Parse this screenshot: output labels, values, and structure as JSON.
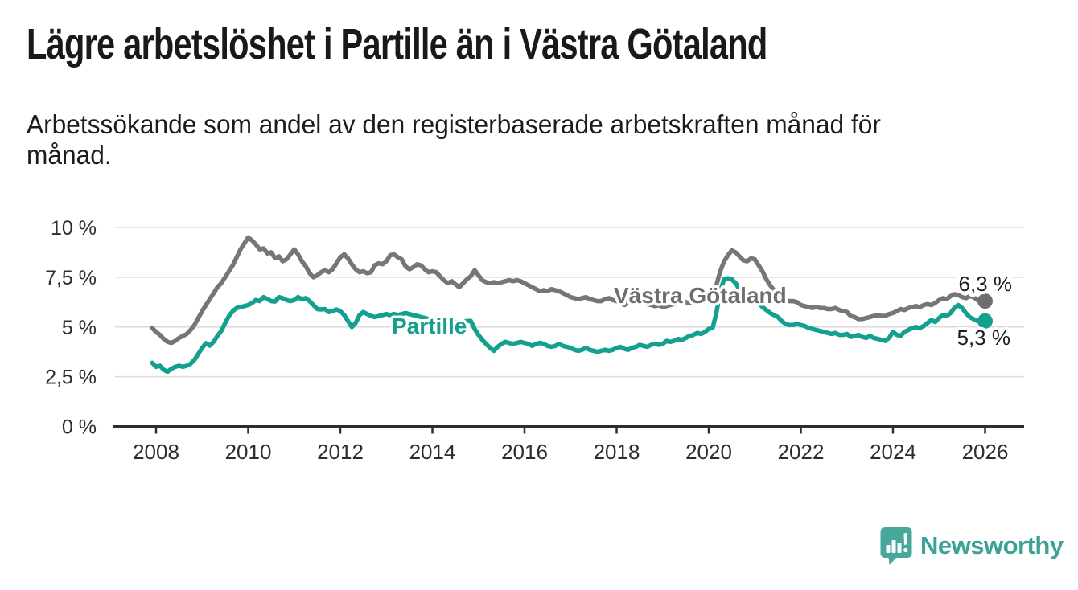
{
  "header": {
    "title": "Lägre arbetslöshet i Partille än i Västra Götaland",
    "subtitle_line1": "Arbetssökande som andel av den registerbaserade arbetskraften månad för",
    "subtitle_line2": "månad."
  },
  "footer": {
    "brand": "Newsworthy",
    "logo_icon": "bar-chart-speech-bubble-icon"
  },
  "colors": {
    "partille_line": "#13a08e",
    "vastra_gotaland_line": "#75757a",
    "partille_label": "#13a08e",
    "vastra_gotaland_label": "#6d6d72",
    "axis": "#2d2d2d",
    "grid": "#dadada",
    "end_label_text": "#1d1d1d",
    "brand_teal": "#48a79b"
  },
  "chart_data": {
    "type": "line",
    "frequency": "monthly",
    "x_start": "2007-12",
    "x_end": "2026-01",
    "grid": "horizontal",
    "legend": "inline-labels",
    "ylim": [
      0,
      10.5
    ],
    "y_ticks": [
      0,
      2.5,
      5,
      7.5,
      10
    ],
    "y_tick_labels": [
      "0 %",
      "2,5 %",
      "5 %",
      "7,5 %",
      "10 %"
    ],
    "x_tick_years": [
      2008,
      2010,
      2012,
      2014,
      2016,
      2018,
      2020,
      2022,
      2024,
      2026
    ],
    "x_tick_labels": [
      "2008",
      "2010",
      "2012",
      "2014",
      "2016",
      "2018",
      "2020",
      "2022",
      "2024",
      "2026"
    ],
    "series": [
      {
        "name": "Västra Götaland",
        "color": "#75757a",
        "end_label": "6,3 %",
        "end_value": 6.3,
        "values": [
          4.95,
          4.75,
          4.6,
          4.4,
          4.25,
          4.2,
          4.3,
          4.45,
          4.55,
          4.65,
          4.85,
          5.1,
          5.45,
          5.8,
          6.1,
          6.4,
          6.7,
          7.0,
          7.2,
          7.5,
          7.8,
          8.1,
          8.5,
          8.9,
          9.2,
          9.5,
          9.35,
          9.15,
          8.9,
          8.95,
          8.7,
          8.75,
          8.45,
          8.55,
          8.3,
          8.4,
          8.65,
          8.9,
          8.65,
          8.3,
          8.05,
          7.7,
          7.5,
          7.6,
          7.75,
          7.85,
          7.75,
          7.9,
          8.2,
          8.5,
          8.65,
          8.45,
          8.15,
          7.9,
          7.75,
          7.8,
          7.7,
          7.75,
          8.1,
          8.2,
          8.15,
          8.3,
          8.6,
          8.65,
          8.5,
          8.4,
          8.05,
          7.9,
          8.0,
          8.15,
          8.1,
          7.9,
          7.75,
          7.8,
          7.75,
          7.55,
          7.35,
          7.2,
          7.3,
          7.15,
          7.0,
          7.2,
          7.4,
          7.55,
          7.85,
          7.6,
          7.35,
          7.25,
          7.2,
          7.25,
          7.2,
          7.25,
          7.3,
          7.35,
          7.3,
          7.35,
          7.3,
          7.2,
          7.1,
          7.0,
          6.9,
          6.8,
          6.85,
          6.8,
          6.9,
          6.85,
          6.8,
          6.7,
          6.6,
          6.5,
          6.45,
          6.4,
          6.45,
          6.5,
          6.4,
          6.35,
          6.3,
          6.3,
          6.4,
          6.45,
          6.35,
          6.3,
          6.2,
          6.1,
          6.2,
          6.25,
          6.3,
          6.35,
          6.25,
          6.15,
          6.1,
          6.05,
          6.1,
          6.0,
          6.05,
          6.1,
          6.15,
          6.2,
          6.3,
          6.25,
          6.2,
          6.3,
          6.35,
          6.4,
          6.45,
          6.5,
          6.6,
          7.1,
          7.8,
          8.3,
          8.6,
          8.85,
          8.75,
          8.55,
          8.35,
          8.3,
          8.45,
          8.4,
          8.1,
          7.8,
          7.4,
          7.1,
          6.85,
          6.6,
          6.45,
          6.35,
          6.3,
          6.3,
          6.25,
          6.1,
          6.05,
          6.0,
          5.95,
          6.0,
          5.95,
          5.95,
          5.9,
          5.9,
          5.95,
          5.85,
          5.8,
          5.75,
          5.55,
          5.5,
          5.4,
          5.4,
          5.45,
          5.5,
          5.55,
          5.6,
          5.55,
          5.55,
          5.65,
          5.7,
          5.8,
          5.9,
          5.85,
          5.95,
          6.0,
          6.05,
          6.0,
          6.1,
          6.15,
          6.1,
          6.2,
          6.35,
          6.45,
          6.4,
          6.55,
          6.65,
          6.6,
          6.5,
          6.45,
          6.55,
          6.5,
          6.35,
          6.3,
          6.3
        ]
      },
      {
        "name": "Partille",
        "color": "#13a08e",
        "end_label": "5,3 %",
        "end_value": 5.3,
        "values": [
          3.2,
          3.0,
          3.05,
          2.85,
          2.75,
          2.9,
          3.0,
          3.05,
          3.0,
          3.05,
          3.15,
          3.35,
          3.65,
          3.95,
          4.18,
          4.06,
          4.26,
          4.55,
          4.8,
          5.2,
          5.55,
          5.8,
          5.95,
          6.0,
          6.05,
          6.1,
          6.2,
          6.35,
          6.3,
          6.5,
          6.4,
          6.3,
          6.28,
          6.5,
          6.45,
          6.35,
          6.3,
          6.35,
          6.5,
          6.4,
          6.45,
          6.3,
          6.1,
          5.9,
          5.88,
          5.9,
          5.75,
          5.8,
          5.88,
          5.8,
          5.6,
          5.3,
          5.0,
          5.2,
          5.6,
          5.75,
          5.65,
          5.55,
          5.5,
          5.55,
          5.6,
          5.65,
          5.6,
          5.65,
          5.6,
          5.65,
          5.7,
          5.65,
          5.6,
          5.55,
          5.5,
          5.45,
          5.4,
          5.4,
          5.35,
          5.3,
          5.3,
          5.25,
          5.2,
          5.25,
          5.2,
          5.25,
          5.3,
          5.3,
          4.9,
          4.6,
          4.35,
          4.15,
          3.95,
          3.8,
          4.0,
          4.15,
          4.25,
          4.2,
          4.15,
          4.2,
          4.25,
          4.2,
          4.15,
          4.05,
          4.15,
          4.2,
          4.15,
          4.05,
          4.0,
          4.05,
          4.15,
          4.05,
          4.0,
          3.95,
          3.85,
          3.8,
          3.85,
          3.95,
          3.85,
          3.8,
          3.75,
          3.8,
          3.85,
          3.8,
          3.85,
          3.95,
          4.0,
          3.9,
          3.85,
          3.95,
          4.0,
          4.1,
          4.05,
          4.0,
          4.1,
          4.15,
          4.1,
          4.15,
          4.3,
          4.25,
          4.3,
          4.4,
          4.35,
          4.45,
          4.55,
          4.6,
          4.7,
          4.65,
          4.75,
          4.9,
          4.95,
          5.7,
          6.8,
          7.4,
          7.45,
          7.4,
          7.2,
          6.9,
          6.7,
          6.5,
          6.4,
          6.3,
          6.2,
          6.0,
          5.85,
          5.7,
          5.6,
          5.5,
          5.3,
          5.15,
          5.1,
          5.1,
          5.15,
          5.1,
          5.05,
          4.95,
          4.9,
          4.85,
          4.8,
          4.75,
          4.7,
          4.65,
          4.7,
          4.6,
          4.6,
          4.65,
          4.5,
          4.55,
          4.6,
          4.5,
          4.45,
          4.55,
          4.45,
          4.4,
          4.35,
          4.3,
          4.45,
          4.75,
          4.6,
          4.55,
          4.75,
          4.85,
          4.95,
          5.0,
          4.95,
          5.05,
          5.2,
          5.35,
          5.25,
          5.45,
          5.6,
          5.55,
          5.7,
          5.95,
          6.1,
          5.95,
          5.7,
          5.5,
          5.4,
          5.3,
          5.25,
          5.3
        ]
      }
    ]
  }
}
